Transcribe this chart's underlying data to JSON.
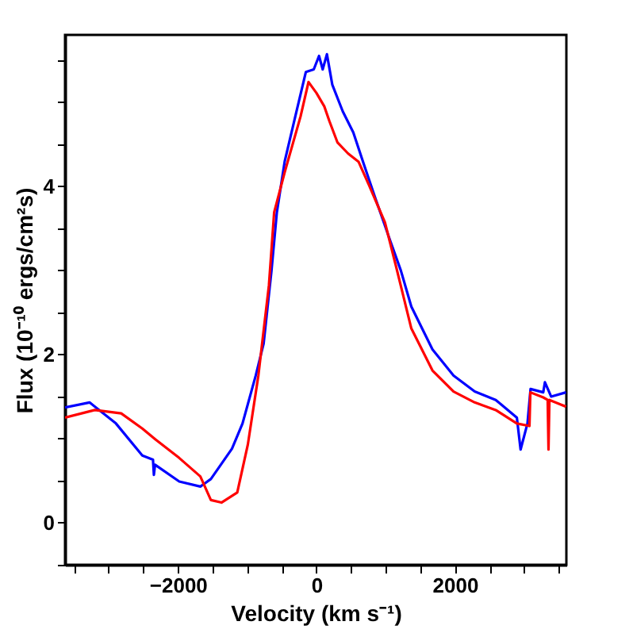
{
  "chart_data": {
    "type": "line",
    "xlabel": "Velocity (km s⁻¹)",
    "ylabel": "Flux (10⁻¹⁰ ergs/cm²s)",
    "xlim": [
      -3630,
      3610
    ],
    "ylim": [
      -0.5,
      5.8
    ],
    "xticks": [
      {
        "value": -3500,
        "label": null
      },
      {
        "value": -3000,
        "label": null
      },
      {
        "value": -2500,
        "label": null
      },
      -2000,
      {
        "value": -1500,
        "label": null
      },
      {
        "value": -1000,
        "label": null
      },
      {
        "value": -500,
        "label": null
      },
      0,
      {
        "value": 500,
        "label": null
      },
      {
        "value": 1000,
        "label": null
      },
      {
        "value": 1500,
        "label": null
      },
      2000,
      {
        "value": 2500,
        "label": null
      },
      {
        "value": 3000,
        "label": null
      },
      {
        "value": 3500,
        "label": null
      }
    ],
    "yticks": [
      {
        "value": -0.5,
        "label": null
      },
      0,
      {
        "value": 0.5,
        "label": null
      },
      {
        "value": 1,
        "label": null
      },
      {
        "value": 1.5,
        "label": null
      },
      2,
      {
        "value": 2.5,
        "label": null
      },
      {
        "value": 3,
        "label": null
      },
      {
        "value": 3.5,
        "label": null
      },
      4,
      {
        "value": 4.5,
        "label": null
      },
      {
        "value": 5,
        "label": null
      },
      {
        "value": 5.5,
        "label": null
      }
    ],
    "grid": false,
    "legend": false,
    "marker": "none",
    "line_style": "solid",
    "series": [
      {
        "color": "#0000ff",
        "x": [
          -3630,
          -3276,
          -2895,
          -2514,
          -2360,
          -2347,
          -2330,
          -1981,
          -1676,
          -1524,
          -1219,
          -1067,
          -876,
          -762,
          -648,
          -571,
          -457,
          -305,
          -152,
          -38,
          38,
          91,
          152,
          229,
          381,
          533,
          686,
          838,
          1067,
          1219,
          1371,
          1676,
          1981,
          2286,
          2590,
          2895,
          2949,
          3048,
          3093,
          3276,
          3300,
          3390,
          3605
        ],
        "values": [
          1.37,
          1.43,
          1.18,
          0.8,
          0.75,
          0.57,
          0.69,
          0.49,
          0.43,
          0.52,
          0.88,
          1.18,
          1.75,
          2.13,
          3.0,
          3.69,
          4.3,
          4.83,
          5.36,
          5.39,
          5.55,
          5.39,
          5.57,
          5.21,
          4.89,
          4.64,
          4.26,
          3.89,
          3.35,
          3.0,
          2.57,
          2.06,
          1.75,
          1.56,
          1.46,
          1.25,
          0.87,
          1.18,
          1.59,
          1.55,
          1.67,
          1.5,
          1.55
        ]
      },
      {
        "color": "#ff0000",
        "x": [
          -3630,
          -3200,
          -2819,
          -2514,
          -2324,
          -1981,
          -1676,
          -1524,
          -1371,
          -1143,
          -990,
          -838,
          -686,
          -610,
          -457,
          -229,
          -114,
          0,
          114,
          190,
          305,
          457,
          610,
          762,
          990,
          1143,
          1371,
          1676,
          1981,
          2286,
          2590,
          2895,
          3077,
          3090,
          3276,
          3340,
          3352,
          3365,
          3605
        ],
        "values": [
          1.25,
          1.34,
          1.3,
          1.12,
          0.99,
          0.77,
          0.55,
          0.27,
          0.24,
          0.36,
          0.93,
          1.75,
          2.82,
          3.69,
          4.17,
          4.83,
          5.24,
          5.11,
          4.95,
          4.77,
          4.52,
          4.39,
          4.29,
          4.01,
          3.57,
          3.07,
          2.31,
          1.81,
          1.56,
          1.43,
          1.34,
          1.18,
          1.15,
          1.55,
          1.49,
          1.46,
          0.87,
          1.46,
          1.38
        ]
      }
    ]
  }
}
